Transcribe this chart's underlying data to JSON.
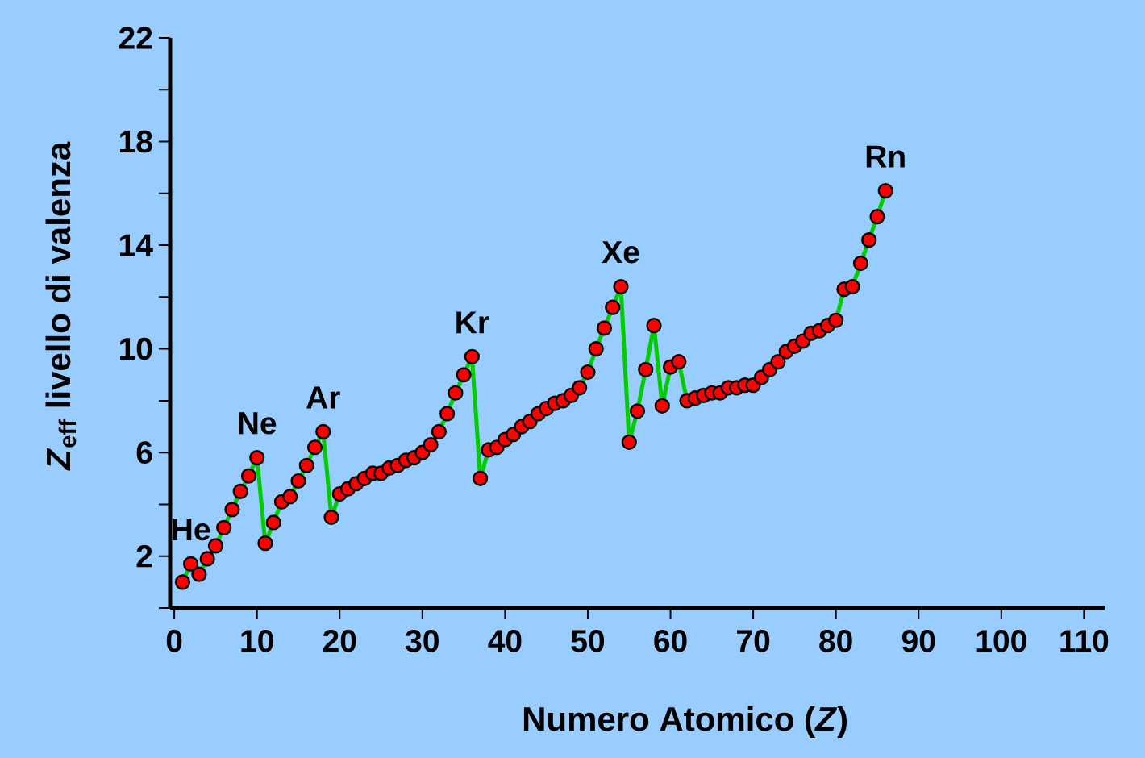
{
  "chart_data": {
    "type": "line",
    "xlabel": "Numero Atomico (*Z*)",
    "ylabel": "*Z*$_{eff}$ livello di valenza",
    "x": [
      1,
      2,
      3,
      4,
      5,
      6,
      7,
      8,
      9,
      10,
      11,
      12,
      13,
      14,
      15,
      16,
      17,
      18,
      19,
      20,
      21,
      22,
      23,
      24,
      25,
      26,
      27,
      28,
      29,
      30,
      31,
      32,
      33,
      34,
      35,
      36,
      37,
      38,
      39,
      40,
      41,
      42,
      43,
      44,
      45,
      46,
      47,
      48,
      49,
      50,
      51,
      52,
      53,
      54,
      55,
      56,
      57,
      58,
      59,
      60,
      61,
      62,
      63,
      64,
      65,
      66,
      67,
      68,
      69,
      70,
      71,
      72,
      73,
      74,
      75,
      76,
      77,
      78,
      79,
      80,
      81,
      82,
      83,
      84,
      85,
      86
    ],
    "series": [
      {
        "color": "#00cc00",
        "colors": [
          "#ff0000",
          "#ff0000",
          "#ff0000",
          "#ff0000",
          "#ff0000",
          "#ff0000",
          "#ff0000",
          "#ff0000",
          "#ff0000",
          "#ff0000",
          "#ff0000",
          "#ff0000",
          "#ff0000",
          "#ff0000",
          "#ff0000",
          "#ff0000",
          "#ff0000",
          "#ff0000",
          "#ff0000",
          "#ff0000",
          "#ff0000",
          "#ff0000",
          "#ff0000",
          "#ff0000",
          "#ff0000",
          "#ff0000",
          "#ff0000",
          "#ff0000",
          "#ff0000",
          "#ff0000",
          "#ff0000",
          "#ff0000",
          "#ff0000",
          "#ff0000",
          "#ff0000",
          "#ff0000",
          "#ff0000",
          "#ff0000",
          "#ff0000",
          "#ff0000",
          "#ff0000",
          "#ff0000",
          "#ff0000",
          "#ff0000",
          "#ff0000",
          "#ff0000",
          "#ff0000",
          "#ff0000",
          "#ff0000",
          "#ff0000",
          "#ff0000",
          "#ff0000",
          "#ff0000",
          "#ff0000",
          "#ff0000",
          "#ff0000",
          "#ff0000",
          "#ff0000",
          "#ff0000",
          "#ff0000",
          "#ff0000",
          "#ff0000",
          "#ff0000",
          "#ff0000",
          "#ff0000",
          "#ff0000",
          "#ff0000",
          "#ff0000",
          "#ff0000",
          "#ff0000",
          "#ff0000",
          "#ff0000",
          "#ff0000",
          "#ff0000",
          "#ff0000",
          "#ff0000",
          "#ff0000",
          "#ff0000",
          "#ff0000",
          "#ff0000",
          "#ff0000",
          "#ff0000",
          "#ff0000",
          "#ff0000",
          "#ff0000",
          "#ff0000"
        ],
        "values": [
          1.0,
          1.7,
          1.3,
          1.9,
          2.4,
          3.1,
          3.8,
          4.5,
          5.1,
          5.8,
          2.5,
          3.3,
          4.1,
          4.3,
          4.9,
          5.5,
          6.2,
          6.8,
          3.5,
          4.4,
          4.6,
          4.8,
          5.0,
          5.2,
          5.2,
          5.4,
          5.5,
          5.7,
          5.8,
          6.0,
          6.3,
          6.8,
          7.5,
          8.3,
          9.0,
          9.7,
          5.0,
          6.1,
          6.2,
          6.5,
          6.7,
          7.0,
          7.2,
          7.5,
          7.7,
          7.9,
          8.0,
          8.2,
          8.5,
          9.1,
          10.0,
          10.8,
          11.6,
          12.4,
          6.4,
          7.6,
          9.2,
          10.9,
          7.8,
          9.3,
          9.5,
          8.0,
          8.1,
          8.2,
          8.3,
          8.3,
          8.5,
          8.5,
          8.6,
          8.6,
          8.9,
          9.2,
          9.5,
          9.9,
          10.1,
          10.3,
          10.6,
          10.7,
          10.9,
          11.1,
          12.3,
          12.4,
          13.3,
          14.2,
          15.1,
          16.1
        ]
      }
    ],
    "marker": "circle",
    "xlim": [
      -0.5,
      112.5
    ],
    "xticks": [
      0,
      10,
      20,
      30,
      40,
      50,
      60,
      70,
      80,
      90,
      100,
      110
    ],
    "ylim": [
      0,
      22
    ],
    "yticks": [
      {
        "value": 0,
        "label": null
      },
      2,
      {
        "value": 4,
        "label": null
      },
      6,
      {
        "value": 8,
        "label": null
      },
      10,
      {
        "value": 12,
        "label": null
      },
      14,
      {
        "value": 16,
        "label": null
      },
      18,
      {
        "value": 20,
        "label": null
      },
      22
    ],
    "grid": false,
    "annotations": [
      {
        "text": "He",
        "x": 2,
        "y": 1.7
      },
      {
        "text": "Ne",
        "x": 10,
        "y": 5.8
      },
      {
        "text": "Ar",
        "x": 18,
        "y": 6.8
      },
      {
        "text": "Kr",
        "x": 36,
        "y": 9.7
      },
      {
        "text": "Xe",
        "x": 54,
        "y": 12.4
      },
      {
        "text": "Rn",
        "x": 86,
        "y": 16.1
      }
    ]
  }
}
